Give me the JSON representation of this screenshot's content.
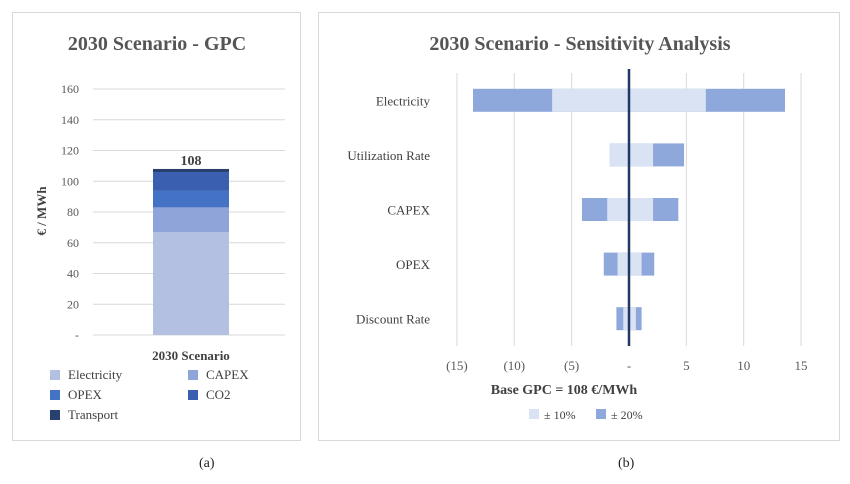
{
  "chart_data": [
    {
      "type": "bar",
      "title": "2030 Scenario - GPC",
      "xlabel": "",
      "ylabel": "€ / MWh",
      "categories": [
        "2030 Scenario"
      ],
      "yticks": [
        "-",
        "20",
        "40",
        "60",
        "80",
        "100",
        "120",
        "140",
        "160"
      ],
      "ylim": [
        0,
        160
      ],
      "stacked": true,
      "series": [
        {
          "name": "Electricity",
          "values": [
            67
          ],
          "color": "#b4c0e2"
        },
        {
          "name": "CAPEX",
          "values": [
            16
          ],
          "color": "#8fa4d9"
        },
        {
          "name": "OPEX",
          "values": [
            11
          ],
          "color": "#4472c4"
        },
        {
          "name": "CO2",
          "values": [
            12
          ],
          "color": "#3a5eb0"
        },
        {
          "name": "Transport",
          "values": [
            2
          ],
          "color": "#27406e"
        }
      ],
      "total_label": "108",
      "grid": true,
      "legend": "bottom"
    },
    {
      "type": "bar",
      "orientation": "horizontal",
      "title": "2030 Scenario - Sensitivity Analysis",
      "xlabel": "Base GPC = 108 €/MWh",
      "ylabel": "",
      "categories": [
        "Electricity",
        "Utilization Rate",
        "CAPEX",
        "OPEX",
        "Discount Rate"
      ],
      "xticks": [
        {
          "value": -15,
          "label": "(15)"
        },
        {
          "value": -10,
          "label": "(10)"
        },
        {
          "value": -5,
          "label": "(5)"
        },
        {
          "value": 0,
          "label": "-"
        },
        {
          "value": 5,
          "label": "5"
        },
        {
          "value": 10,
          "label": "10"
        },
        {
          "value": 15,
          "label": "15"
        }
      ],
      "xlim": [
        -17,
        17
      ],
      "series": [
        {
          "name": "± 10%",
          "color": "#dae3f3",
          "ranges": [
            [
              -6.7,
              6.7
            ],
            [
              -1.7,
              2.1
            ],
            [
              -1.9,
              2.1
            ],
            [
              -1.0,
              1.1
            ],
            [
              -0.5,
              0.6
            ]
          ]
        },
        {
          "name": "± 20%",
          "color": "#8fa8dc",
          "ranges": [
            [
              -13.6,
              13.6
            ],
            [
              -1.7,
              4.8
            ],
            [
              -4.1,
              4.3
            ],
            [
              -2.2,
              2.2
            ],
            [
              -1.1,
              1.1
            ]
          ]
        }
      ],
      "grid": true,
      "legend": "bottom"
    }
  ],
  "captions": {
    "a": "(a)",
    "b": "(b)"
  }
}
